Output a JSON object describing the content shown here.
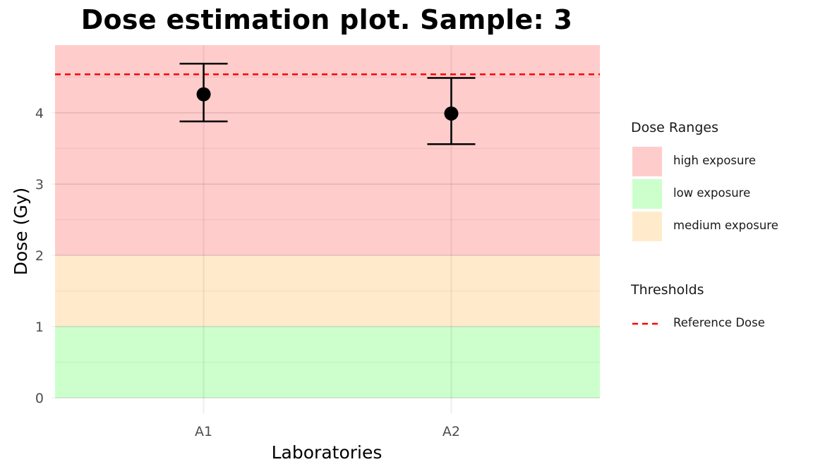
{
  "chart_data": {
    "type": "scatter",
    "title": "Dose estimation plot. Sample:  3",
    "xlabel": "Laboratories",
    "ylabel": "Dose (Gy)",
    "categories": [
      "A1",
      "A2"
    ],
    "ylim": [
      0,
      4.95
    ],
    "yticks": [
      0,
      1,
      2,
      3,
      4
    ],
    "grid": true,
    "series": [
      {
        "points": [
          {
            "x": "A1",
            "y": 4.26,
            "lower": 3.88,
            "upper": 4.69
          },
          {
            "x": "A2",
            "y": 3.99,
            "lower": 3.56,
            "upper": 4.49
          }
        ]
      }
    ],
    "bands": [
      {
        "name": "high exposure",
        "from": 2,
        "to": 4.95,
        "color": "#FFCCCC"
      },
      {
        "name": "low exposure",
        "from": 0,
        "to": 1,
        "color": "#CCFFCC"
      },
      {
        "name": "medium exposure",
        "from": 1,
        "to": 2,
        "color": "#FFEBCC"
      }
    ],
    "reference_lines": [
      {
        "name": "Reference Dose",
        "y": 4.54,
        "color": "#FF0000",
        "style": "dashed"
      }
    ],
    "legend": {
      "placement": "right",
      "groups": [
        {
          "title": "Dose Ranges",
          "items": [
            "high exposure",
            "low exposure",
            "medium exposure"
          ]
        },
        {
          "title": "Thresholds",
          "items": [
            "Reference Dose"
          ]
        }
      ]
    }
  }
}
